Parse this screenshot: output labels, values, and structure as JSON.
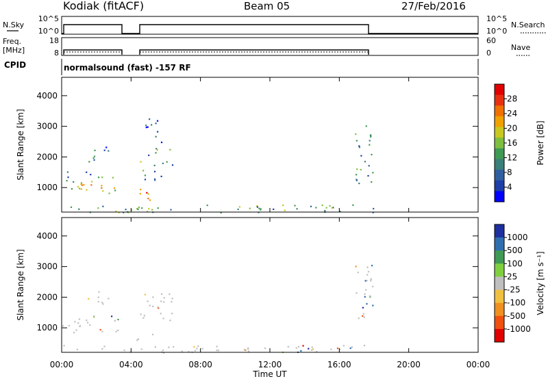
{
  "header": {
    "station": "Kodiak (fitACF)",
    "beam": "Beam 05",
    "date": "27/Feb/2016"
  },
  "top_panels": {
    "nsky_label": "N.Sky",
    "nsky_ticks": [
      "10^5",
      "10^0"
    ],
    "nsearch_label": "N.Search",
    "freq_label_1": "Freq.",
    "freq_label_2": "[MHz]",
    "freq_ticks": [
      "18",
      "8"
    ],
    "nave_ticks": [
      "60",
      "0"
    ],
    "nave_label": "Nave",
    "cpid_label": "CPID",
    "cpid_text": "normalsound (fast) -157 RF"
  },
  "colors": {
    "velocity_grey": "#bfbfbf",
    "line": "#000000"
  },
  "chart_data": [
    {
      "type": "heatmap",
      "name": "power",
      "ylabel": "Slant Range [km]",
      "xlabel": "",
      "y_ticks": [
        "1000",
        "2000",
        "3000",
        "4000"
      ],
      "ylim": [
        200,
        4600
      ],
      "xlim": [
        0,
        24
      ],
      "colorbar_label": "Power [dB]",
      "colorbar_ticks": [
        "4",
        "8",
        "12",
        "16",
        "20",
        "24",
        "28"
      ],
      "colorbar_colors": [
        "#0000ff",
        "#1e3fa8",
        "#2f5fa0",
        "#3a7f7a",
        "#3f9a55",
        "#7fbf3f",
        "#c8c820",
        "#f0a000",
        "#f07000",
        "#e83010",
        "#e00000"
      ],
      "regions": [
        {
          "t0": 0.0,
          "t1": 3.3,
          "r0": 800,
          "r1": 1250,
          "level": 0.55
        },
        {
          "t0": 0.3,
          "t1": 3.2,
          "r0": 1300,
          "r1": 1550,
          "level": 0.3
        },
        {
          "t0": 1.5,
          "t1": 3.0,
          "r0": 1800,
          "r1": 2400,
          "level": 0.2
        },
        {
          "t0": 4.3,
          "t1": 5.3,
          "r0": 600,
          "r1": 1100,
          "level": 0.8
        },
        {
          "t0": 4.5,
          "t1": 6.5,
          "r0": 1200,
          "r1": 2300,
          "level": 0.35
        },
        {
          "t0": 4.8,
          "t1": 5.8,
          "r0": 2500,
          "r1": 3300,
          "level": 0.15
        },
        {
          "t0": 16.9,
          "t1": 17.9,
          "r0": 1100,
          "r1": 3100,
          "level": 0.3
        },
        {
          "t0": 0.0,
          "t1": 18.0,
          "r0": 200,
          "r1": 450,
          "level": 0.4
        }
      ]
    },
    {
      "type": "heatmap",
      "name": "velocity",
      "ylabel": "Slant Range [km]",
      "xlabel": "Time UT",
      "x_ticks": [
        "00:00",
        "04:00",
        "08:00",
        "12:00",
        "16:00",
        "20:00",
        "00:00"
      ],
      "y_ticks": [
        "1000",
        "2000",
        "3000",
        "4000"
      ],
      "ylim": [
        200,
        4600
      ],
      "xlim": [
        0,
        24
      ],
      "colorbar_label": "Velocity [m s⁻¹]",
      "colorbar_ticks": [
        "1000",
        "500",
        "100",
        "25",
        "-25",
        "-100",
        "-500",
        "-1000"
      ],
      "colorbar_colors": [
        "#1e2fa0",
        "#2f6fb0",
        "#3f9a55",
        "#7fcf3f",
        "#bfbfbf",
        "#f0c040",
        "#f09020",
        "#f05010",
        "#e00000"
      ],
      "regions": [
        {
          "t0": 0.0,
          "t1": 3.3,
          "r0": 850,
          "r1": 1450,
          "level": 0.0
        },
        {
          "t0": 1.5,
          "t1": 3.0,
          "r0": 1800,
          "r1": 2300,
          "level": 0.0
        },
        {
          "t0": 4.3,
          "t1": 5.3,
          "r0": 600,
          "r1": 1150,
          "level": 0.0
        },
        {
          "t0": 4.5,
          "t1": 6.5,
          "r0": 1250,
          "r1": 2250,
          "level": 0.0
        },
        {
          "t0": 16.9,
          "t1": 17.9,
          "r0": 1300,
          "r1": 3100,
          "level": 0.0
        },
        {
          "t0": 0.0,
          "t1": 18.0,
          "r0": 200,
          "r1": 450,
          "level": 0.0
        }
      ]
    }
  ]
}
